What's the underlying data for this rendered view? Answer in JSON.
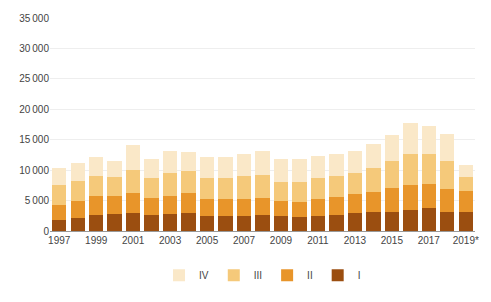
{
  "chart_data": {
    "type": "bar",
    "stacked": true,
    "categories": [
      "1997",
      null,
      "1999",
      null,
      "2001",
      null,
      "2003",
      null,
      "2005",
      null,
      "2007",
      null,
      "2009",
      null,
      "2011",
      null,
      "2013",
      null,
      "2015",
      null,
      "2017",
      null,
      "2019*"
    ],
    "series": [
      {
        "name": "I",
        "color": "#9B4E10",
        "values": [
          1800,
          2200,
          2700,
          2800,
          3000,
          2600,
          2800,
          3000,
          2500,
          2500,
          2500,
          2600,
          2400,
          2300,
          2500,
          2700,
          3000,
          3100,
          3200,
          3400,
          3700,
          3200,
          3100
        ]
      },
      {
        "name": "II",
        "color": "#E8952A",
        "values": [
          2500,
          2700,
          3000,
          3000,
          3200,
          2800,
          3000,
          3200,
          2700,
          2700,
          2800,
          2900,
          2500,
          2500,
          2700,
          2900,
          3100,
          3300,
          3800,
          4100,
          4000,
          3700,
          3500
        ]
      },
      {
        "name": "III",
        "color": "#F5C97A",
        "values": [
          3200,
          3300,
          3400,
          3000,
          3900,
          3300,
          3800,
          3600,
          3500,
          3500,
          3700,
          3700,
          3200,
          3200,
          3500,
          3500,
          3500,
          3900,
          4500,
          5200,
          4900,
          4600,
          2200
        ]
      },
      {
        "name": "IV",
        "color": "#FAE8C8",
        "values": [
          2800,
          3000,
          3000,
          2700,
          4000,
          3200,
          3500,
          3200,
          3500,
          3500,
          3600,
          3900,
          3800,
          3800,
          3600,
          3600,
          3600,
          4000,
          4200,
          5100,
          4600,
          4500,
          2100
        ]
      }
    ],
    "ylim": [
      0,
      35000
    ],
    "yticks": [
      0,
      {
        "value": 5000,
        "label": "5 000"
      },
      {
        "value": 10000,
        "label": "10 000"
      },
      {
        "value": 15000,
        "label": "15 000"
      },
      {
        "value": 20000,
        "label": "20 000"
      },
      {
        "value": 25000,
        "label": "25 000"
      },
      {
        "value": 30000,
        "label": "30 000"
      },
      {
        "value": 35000,
        "label": "35 000"
      }
    ],
    "grid": true,
    "legend": "bottom"
  }
}
